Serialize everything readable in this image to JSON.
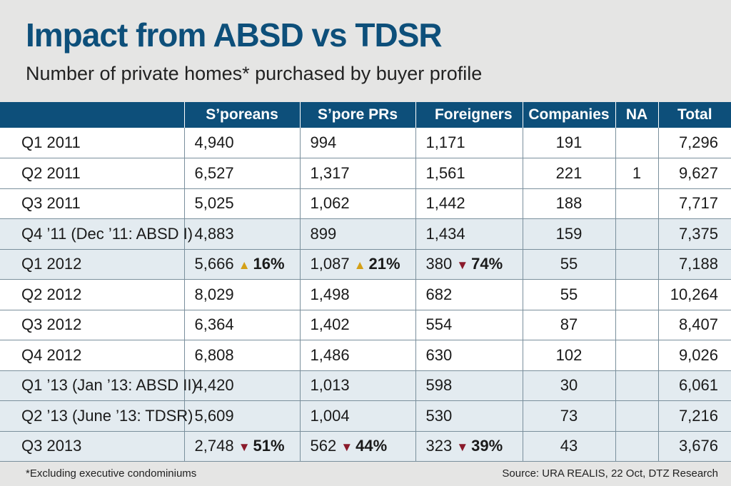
{
  "title": "Impact from ABSD vs TDSR",
  "subtitle": "Number of private homes* purchased by buyer profile",
  "footnote": "*Excluding executive condominiums",
  "source": "Source: URA REALIS, 22 Oct, DTZ Research",
  "colors": {
    "header_bg": "#0d4f7a",
    "title": "#0d4f7a",
    "shaded_row": "#e3ebf0",
    "arrow_up": "#d4a017",
    "arrow_down": "#8b1a2b"
  },
  "chart_data": {
    "type": "table",
    "columns": [
      "",
      "S’poreans",
      "S’pore PRs",
      "Foreigners",
      "Companies",
      "NA",
      "Total"
    ],
    "rows": [
      {
        "period": "Q1 2011",
        "note": "",
        "shaded": false,
        "sporeans": "4,940",
        "sporeans_chg": null,
        "prs": "994",
        "prs_chg": null,
        "foreigners": "1,171",
        "foreigners_chg": null,
        "companies": "191",
        "na": "",
        "total": "7,296"
      },
      {
        "period": "Q2 2011",
        "note": "",
        "shaded": false,
        "sporeans": "6,527",
        "sporeans_chg": null,
        "prs": "1,317",
        "prs_chg": null,
        "foreigners": "1,561",
        "foreigners_chg": null,
        "companies": "221",
        "na": "1",
        "total": "9,627"
      },
      {
        "period": "Q3 2011",
        "note": "",
        "shaded": false,
        "sporeans": "5,025",
        "sporeans_chg": null,
        "prs": "1,062",
        "prs_chg": null,
        "foreigners": "1,442",
        "foreigners_chg": null,
        "companies": "188",
        "na": "",
        "total": "7,717"
      },
      {
        "period": "Q4 ’11",
        "note": "(Dec ’11: ABSD I)",
        "shaded": true,
        "sporeans": "4,883",
        "sporeans_chg": null,
        "prs": "899",
        "prs_chg": null,
        "foreigners": "1,434",
        "foreigners_chg": null,
        "companies": "159",
        "na": "",
        "total": "7,375"
      },
      {
        "period": "Q1 2012",
        "note": "",
        "shaded": true,
        "sporeans": "5,666",
        "sporeans_chg": {
          "dir": "up",
          "text": "16%"
        },
        "prs": "1,087",
        "prs_chg": {
          "dir": "up",
          "text": "21%"
        },
        "foreigners": "380",
        "foreigners_chg": {
          "dir": "down",
          "text": "74%"
        },
        "companies": "55",
        "na": "",
        "total": "7,188"
      },
      {
        "period": "Q2 2012",
        "note": "",
        "shaded": false,
        "sporeans": "8,029",
        "sporeans_chg": null,
        "prs": "1,498",
        "prs_chg": null,
        "foreigners": "682",
        "foreigners_chg": null,
        "companies": "55",
        "na": "",
        "total": "10,264"
      },
      {
        "period": "Q3 2012",
        "note": "",
        "shaded": false,
        "sporeans": "6,364",
        "sporeans_chg": null,
        "prs": "1,402",
        "prs_chg": null,
        "foreigners": "554",
        "foreigners_chg": null,
        "companies": "87",
        "na": "",
        "total": "8,407"
      },
      {
        "period": "Q4 2012",
        "note": "",
        "shaded": false,
        "sporeans": "6,808",
        "sporeans_chg": null,
        "prs": "1,486",
        "prs_chg": null,
        "foreigners": "630",
        "foreigners_chg": null,
        "companies": "102",
        "na": "",
        "total": "9,026"
      },
      {
        "period": "Q1 ’13",
        "note": "(Jan ’13: ABSD II)",
        "shaded": true,
        "sporeans": "4,420",
        "sporeans_chg": null,
        "prs": "1,013",
        "prs_chg": null,
        "foreigners": "598",
        "foreigners_chg": null,
        "companies": "30",
        "na": "",
        "total": "6,061"
      },
      {
        "period": "Q2 ’13",
        "note": "(June ’13: TDSR)",
        "shaded": true,
        "sporeans": "5,609",
        "sporeans_chg": null,
        "prs": "1,004",
        "prs_chg": null,
        "foreigners": "530",
        "foreigners_chg": null,
        "companies": "73",
        "na": "",
        "total": "7,216"
      },
      {
        "period": "Q3 2013",
        "note": "",
        "shaded": true,
        "sporeans": "2,748",
        "sporeans_chg": {
          "dir": "down",
          "text": "51%"
        },
        "prs": "562",
        "prs_chg": {
          "dir": "down",
          "text": "44%"
        },
        "foreigners": "323",
        "foreigners_chg": {
          "dir": "down",
          "text": "39%"
        },
        "companies": "43",
        "na": "",
        "total": "3,676"
      }
    ]
  }
}
